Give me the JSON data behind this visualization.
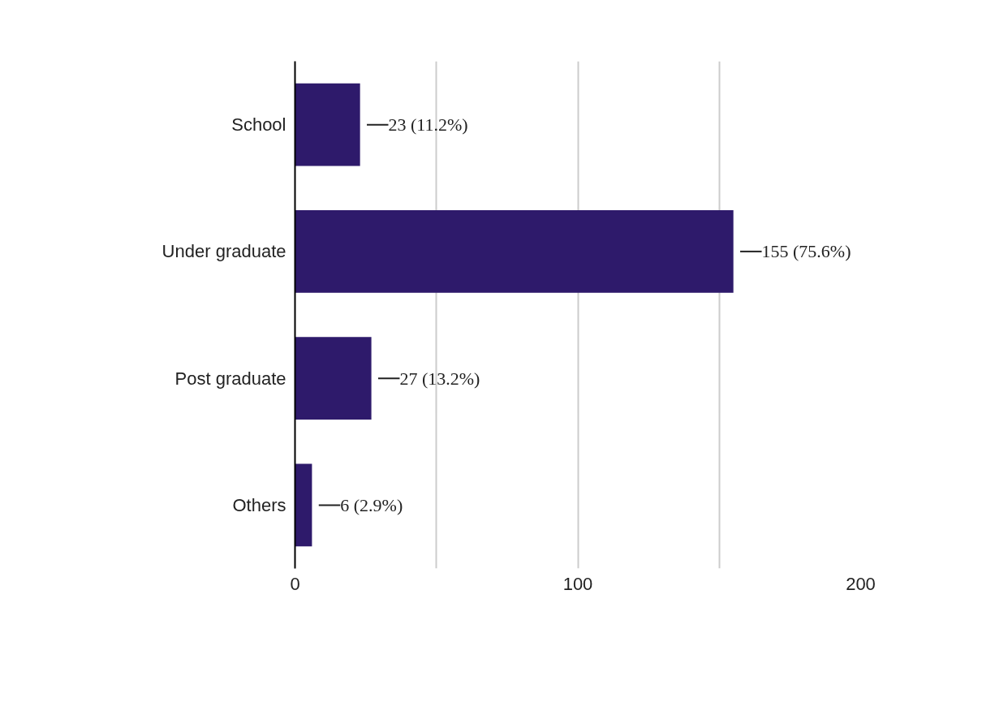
{
  "chart_data": {
    "type": "bar",
    "orientation": "horizontal",
    "categories": [
      "School",
      "Under graduate",
      "Post graduate",
      "Others"
    ],
    "values": [
      23,
      155,
      27,
      6
    ],
    "value_labels": [
      "23 (11.2%)",
      "155 (75.6%)",
      "27 (13.2%)",
      "6 (2.9%)"
    ],
    "color": "#2e1a6b",
    "xlim": [
      0,
      200
    ],
    "xticks": [
      0,
      {
        "value": 50,
        "label": null
      },
      100,
      {
        "value": 150,
        "label": null
      },
      200
    ],
    "grid": "x"
  }
}
